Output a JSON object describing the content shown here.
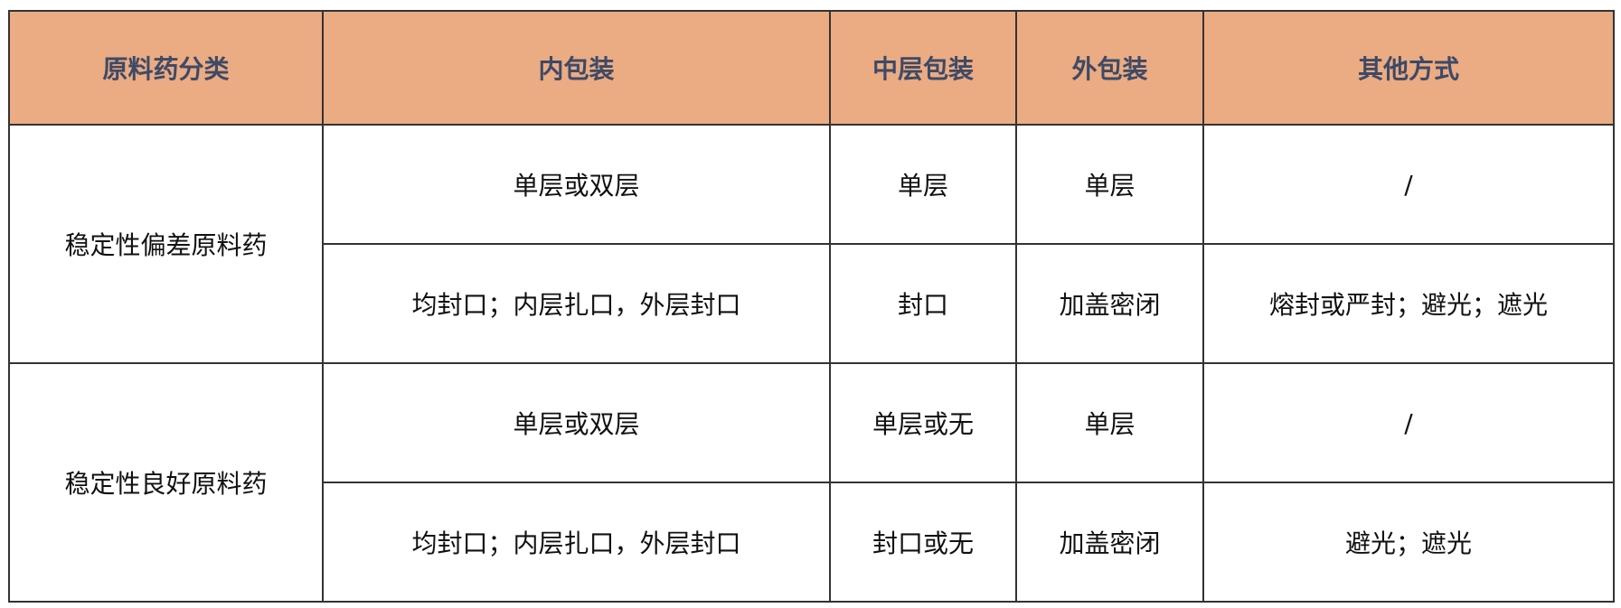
{
  "header": {
    "bg_color": "#EBAB83",
    "columns": [
      "原料药分类",
      "内包装",
      "中层包装",
      "外包装",
      "其他方式"
    ]
  },
  "groups": [
    {
      "category": "稳定性偏差原料药",
      "rows": [
        [
          "单层或双层",
          "单层",
          "单层",
          "/"
        ],
        [
          "均封口；内层扎口，外层封口",
          "封口",
          "加盖密闭",
          "熔封或严封；避光；遮光"
        ]
      ]
    },
    {
      "category": "稳定性良好原料药",
      "rows": [
        [
          "单层或双层",
          "单层或无",
          "单层",
          "/"
        ],
        [
          "均封口；内层扎口，外层封口",
          "封口或无",
          "加盖密闭",
          "避光；遮光"
        ]
      ]
    }
  ]
}
